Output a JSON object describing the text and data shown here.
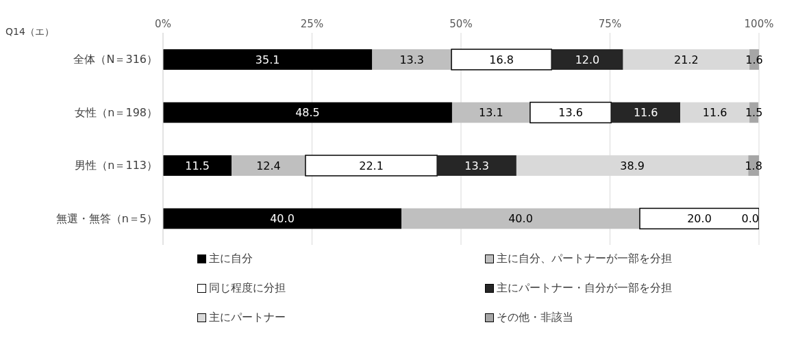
{
  "chart_data": {
    "type": "bar",
    "orientation": "horizontal",
    "stacked": true,
    "title": "Q14（エ）",
    "categories": [
      "全体（N＝316）",
      "女性（n＝198）",
      "男性（n＝113）",
      "無選・無答（n＝5）"
    ],
    "series": [
      {
        "name": "主に自分",
        "color": "#000000",
        "values": [
          35.1,
          48.5,
          11.5,
          40.0
        ],
        "value_labels": [
          "35.1",
          "48.5",
          "11.5",
          "40.0"
        ]
      },
      {
        "name": "主に自分、パートナーが一部を分担",
        "color": "#bfbfbf",
        "values": [
          13.3,
          13.1,
          12.4,
          40.0
        ],
        "value_labels": [
          "13.3",
          "13.1",
          "12.4",
          "40.0"
        ]
      },
      {
        "name": "同じ程度に分担",
        "color": "#ffffff",
        "values": [
          16.8,
          13.6,
          22.1,
          20.0
        ],
        "value_labels": [
          "16.8",
          "13.6",
          "22.1",
          "20.0"
        ]
      },
      {
        "name": "主にパートナー・自分が一部を分担",
        "color": "#262626",
        "values": [
          12.0,
          11.6,
          13.3,
          0.0
        ],
        "value_labels": [
          "12.0",
          "11.6",
          "13.3",
          null
        ]
      },
      {
        "name": "主にパートナー",
        "color": "#d9d9d9",
        "values": [
          21.2,
          11.6,
          38.9,
          0.0
        ],
        "value_labels": [
          "21.2",
          "11.6",
          "38.9",
          null
        ]
      },
      {
        "name": "その他・非該当",
        "color": "#a6a6a6",
        "values": [
          1.6,
          1.5,
          1.8,
          0.0
        ],
        "value_labels": [
          "1.6",
          "1.5",
          "1.8",
          "0.0"
        ]
      }
    ],
    "xlim": [
      0,
      100
    ],
    "xticks": [
      {
        "value": 0,
        "label": "0%"
      },
      {
        "value": 25,
        "label": "25%"
      },
      {
        "value": 50,
        "label": "50%"
      },
      {
        "value": 75,
        "label": "75%"
      },
      {
        "value": 100,
        "label": "100%"
      }
    ],
    "grid": "x",
    "legend": "bottom"
  }
}
